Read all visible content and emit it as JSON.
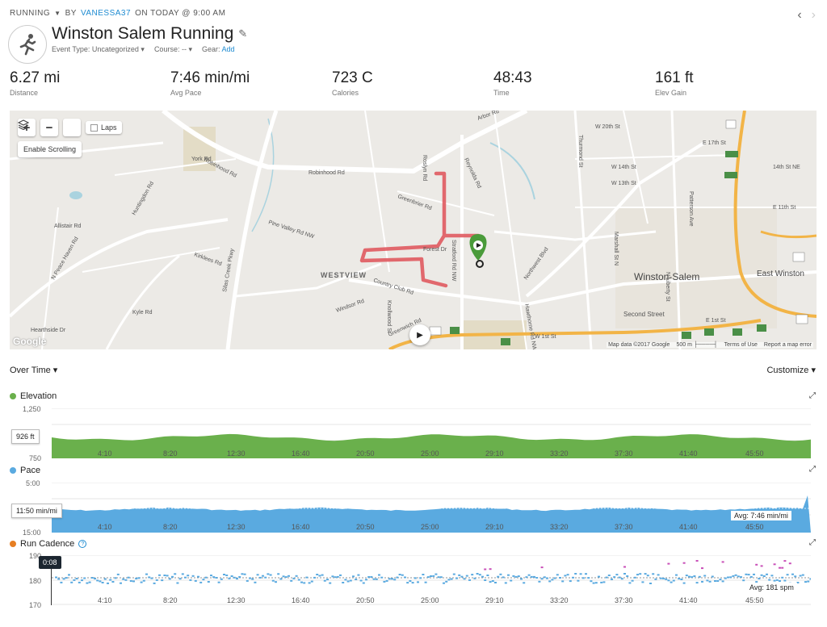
{
  "header": {
    "activity_type": "RUNNING",
    "by": "BY",
    "user": "VANESSA37",
    "when": "ON TODAY @ 9:00 AM",
    "title": "Winston Salem Running",
    "event_type_label": "Event Type: Uncategorized",
    "course_label": "Course: --",
    "gear_label": "Gear:",
    "gear_add": "Add"
  },
  "stats": [
    {
      "value": "6.27 mi",
      "label": "Distance"
    },
    {
      "value": "7:46 min/mi",
      "label": "Avg Pace"
    },
    {
      "value": "723 C",
      "label": "Calories"
    },
    {
      "value": "48:43",
      "label": "Time"
    },
    {
      "value": "161 ft",
      "label": "Elev Gain"
    }
  ],
  "map": {
    "laps_label": "Laps",
    "enable_scrolling": "Enable Scrolling",
    "google": "Google",
    "footer": {
      "mapdata": "Map data ©2017 Google",
      "scale": "500 m",
      "terms": "Terms of Use",
      "report": "Report a map error"
    },
    "labels": [
      "Robinhood Rd",
      "WESTVIEW",
      "Winston-Salem",
      "East Winston",
      "Country Club Rd",
      "Silas Creek Pkwy",
      "Pine Valley Rd NW",
      "N Peace Haven Rd",
      "Northwest Blvd",
      "Second Street",
      "W 1st St",
      "Stratford Rd NW",
      "Greenbrier Rd",
      "Reynolda Rd",
      "Roslyn Rd",
      "Arbor Rd",
      "Huntingdon Rd",
      "Kirklees Rd",
      "Kyle Rd",
      "Hearthside Dr",
      "Knollwood St",
      "Windsor Rd",
      "Greenwich Rd",
      "W 20th St",
      "W 14th St",
      "W 13th St",
      "E 17th St",
      "E 11th St",
      "E 1st St",
      "N Liberty St",
      "Marshall St N",
      "Patterson Ave",
      "Thurmond St",
      "Hawthorne Rd NW",
      "Allistair Rd",
      "Forest Dr",
      "York Rd",
      "14th St NE"
    ]
  },
  "over_time_label": "Over Time",
  "customize_label": "Customize",
  "x_ticks": [
    "4:10",
    "8:20",
    "12:30",
    "16:40",
    "20:50",
    "25:00",
    "29:10",
    "33:20",
    "37:30",
    "41:40",
    "45:50"
  ],
  "elevation": {
    "title": "Elevation",
    "color": "#6ab04c",
    "y_ticks": [
      "1,250",
      "750"
    ],
    "cursor_value": "926 ft"
  },
  "pace": {
    "title": "Pace",
    "color": "#5aaae0",
    "y_ticks": [
      "5:00",
      "15:00"
    ],
    "cursor_value": "11:50 min/mi",
    "avg": "Avg: 7:46 min/mi"
  },
  "cadence": {
    "title": "Run Cadence",
    "color": "#e67e22",
    "y_ticks": [
      "190",
      "180",
      "170"
    ],
    "time_tag": "0:08",
    "avg": "Avg: 181 spm"
  },
  "colors": {
    "accent": "#1e8bd1",
    "route": "#e05a5f",
    "marker": "#4a9b3a"
  }
}
